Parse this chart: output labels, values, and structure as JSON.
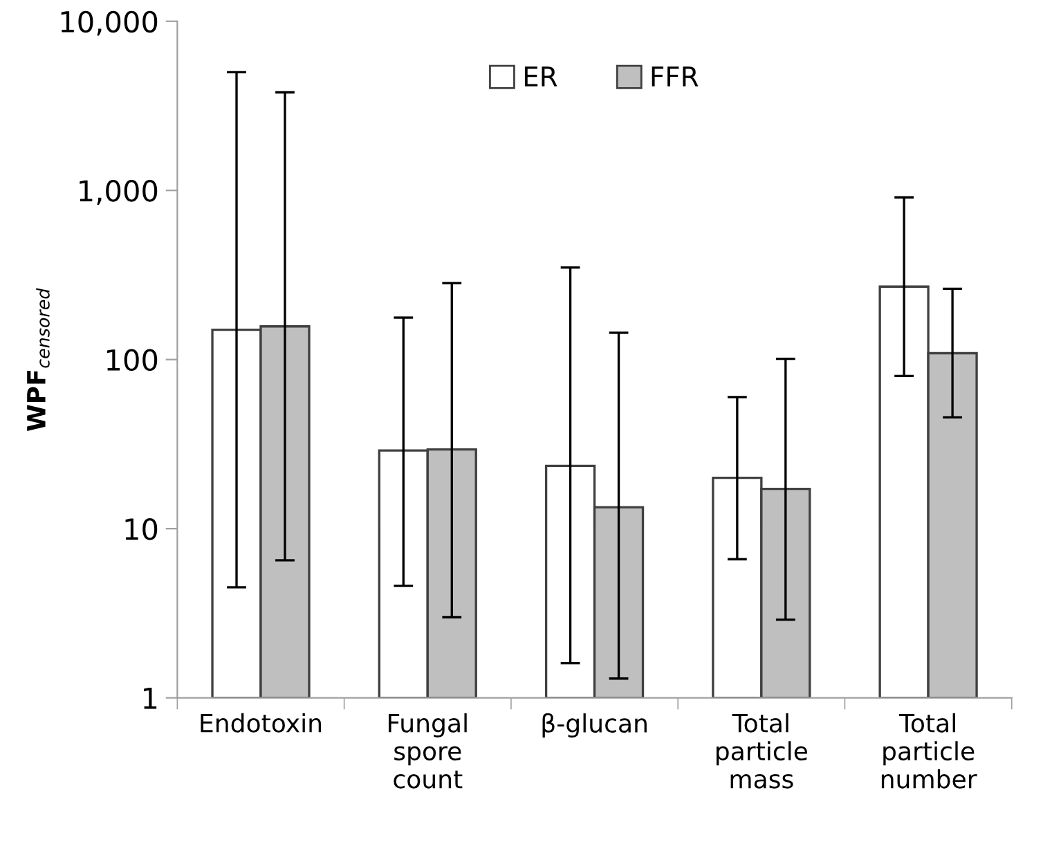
{
  "chart_data": {
    "type": "bar",
    "ylabel": "WPF$_{censored}$",
    "categories": [
      "Endotoxin",
      "Fungal\nspore\ncount",
      "β-glucan",
      "Total\nparticle\nmass",
      "Total\nparticle\nnumber"
    ],
    "series": [
      {
        "name": "ER",
        "color": "#ffffff",
        "values": [
          150,
          29,
          23.5,
          20,
          270
        ],
        "errors": [
          [
            4.5,
            5000
          ],
          [
            4.6,
            177
          ],
          [
            1.6,
            350
          ],
          [
            6.6,
            60
          ],
          [
            80,
            910
          ]
        ]
      },
      {
        "name": "FFR",
        "color": "#bfbfbf",
        "values": [
          157,
          29.4,
          13.4,
          17.2,
          109
        ],
        "errors": [
          [
            6.5,
            3800
          ],
          [
            3.0,
            283
          ],
          [
            1.3,
            144
          ],
          [
            2.9,
            101
          ],
          [
            45.6,
            262
          ]
        ]
      }
    ],
    "log": true,
    "ylim": [
      1,
      10000
    ],
    "yticks": [
      1,
      10,
      100,
      {
        "value": 1000,
        "label": "1,000"
      },
      {
        "value": 10000,
        "label": "10,000"
      }
    ],
    "grid": false,
    "legend": "top"
  }
}
